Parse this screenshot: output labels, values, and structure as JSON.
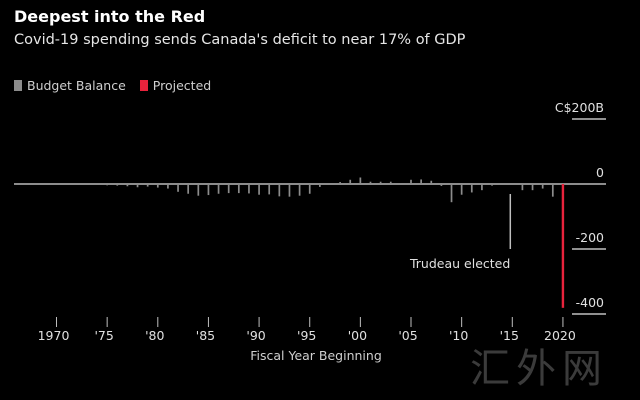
{
  "chart_data": {
    "type": "bar",
    "title": "Deepest into the Red",
    "subtitle": "Covid-19 spending sends Canada's deficit to near 17% of GDP",
    "xlabel": "Fiscal Year Beginning",
    "ylabel": "C$200B",
    "ylim": [
      -400,
      200
    ],
    "y_ticks": [
      {
        "value": 200,
        "label": "C$200B"
      },
      {
        "value": 0,
        "label": "0"
      },
      {
        "value": -200,
        "label": "-200"
      },
      {
        "value": -400,
        "label": "-400"
      }
    ],
    "x_ticks": [
      {
        "year": 1970,
        "label": "1970"
      },
      {
        "year": 1975,
        "label": "'75"
      },
      {
        "year": 1980,
        "label": "'80"
      },
      {
        "year": 1985,
        "label": "'85"
      },
      {
        "year": 1990,
        "label": "'90"
      },
      {
        "year": 1995,
        "label": "'95"
      },
      {
        "year": 2000,
        "label": "'00"
      },
      {
        "year": 2005,
        "label": "'05"
      },
      {
        "year": 2010,
        "label": "'10"
      },
      {
        "year": 2015,
        "label": "'15"
      },
      {
        "year": 2020,
        "label": "2020"
      }
    ],
    "legend": [
      {
        "name": "Budget Balance",
        "color": "#8c8c8c"
      },
      {
        "name": "Projected",
        "color": "#e8233c"
      }
    ],
    "series": [
      {
        "name": "Budget Balance",
        "color": "#8c8c8c",
        "x": [
          1966,
          1967,
          1968,
          1969,
          1970,
          1971,
          1972,
          1973,
          1974,
          1975,
          1976,
          1977,
          1978,
          1979,
          1980,
          1981,
          1982,
          1983,
          1984,
          1985,
          1986,
          1987,
          1988,
          1989,
          1990,
          1991,
          1992,
          1993,
          1994,
          1995,
          1996,
          1997,
          1998,
          1999,
          2000,
          2001,
          2002,
          2003,
          2004,
          2005,
          2006,
          2007,
          2008,
          2009,
          2010,
          2011,
          2012,
          2013,
          2014,
          2015,
          2016,
          2017,
          2018,
          2019
        ],
        "values": [
          -1,
          -1,
          -1,
          0,
          -1,
          -1,
          -2,
          -1,
          -2,
          -4,
          -5,
          -7,
          -10,
          -8,
          -11,
          -14,
          -24,
          -30,
          -36,
          -34,
          -30,
          -28,
          -28,
          -29,
          -33,
          -32,
          -38,
          -39,
          -36,
          -30,
          -9,
          3,
          6,
          13,
          20,
          7,
          7,
          7,
          2,
          13,
          14,
          10,
          -6,
          -56,
          -33,
          -26,
          -19,
          -5,
          -2,
          -1,
          -19,
          -19,
          -14,
          -39
        ]
      },
      {
        "name": "Projected",
        "color": "#e8233c",
        "x": [
          2020
        ],
        "values": [
          -381
        ]
      }
    ],
    "annotations": [
      {
        "text": "Trudeau elected",
        "year": 2015
      }
    ],
    "watermark": "汇外网"
  }
}
